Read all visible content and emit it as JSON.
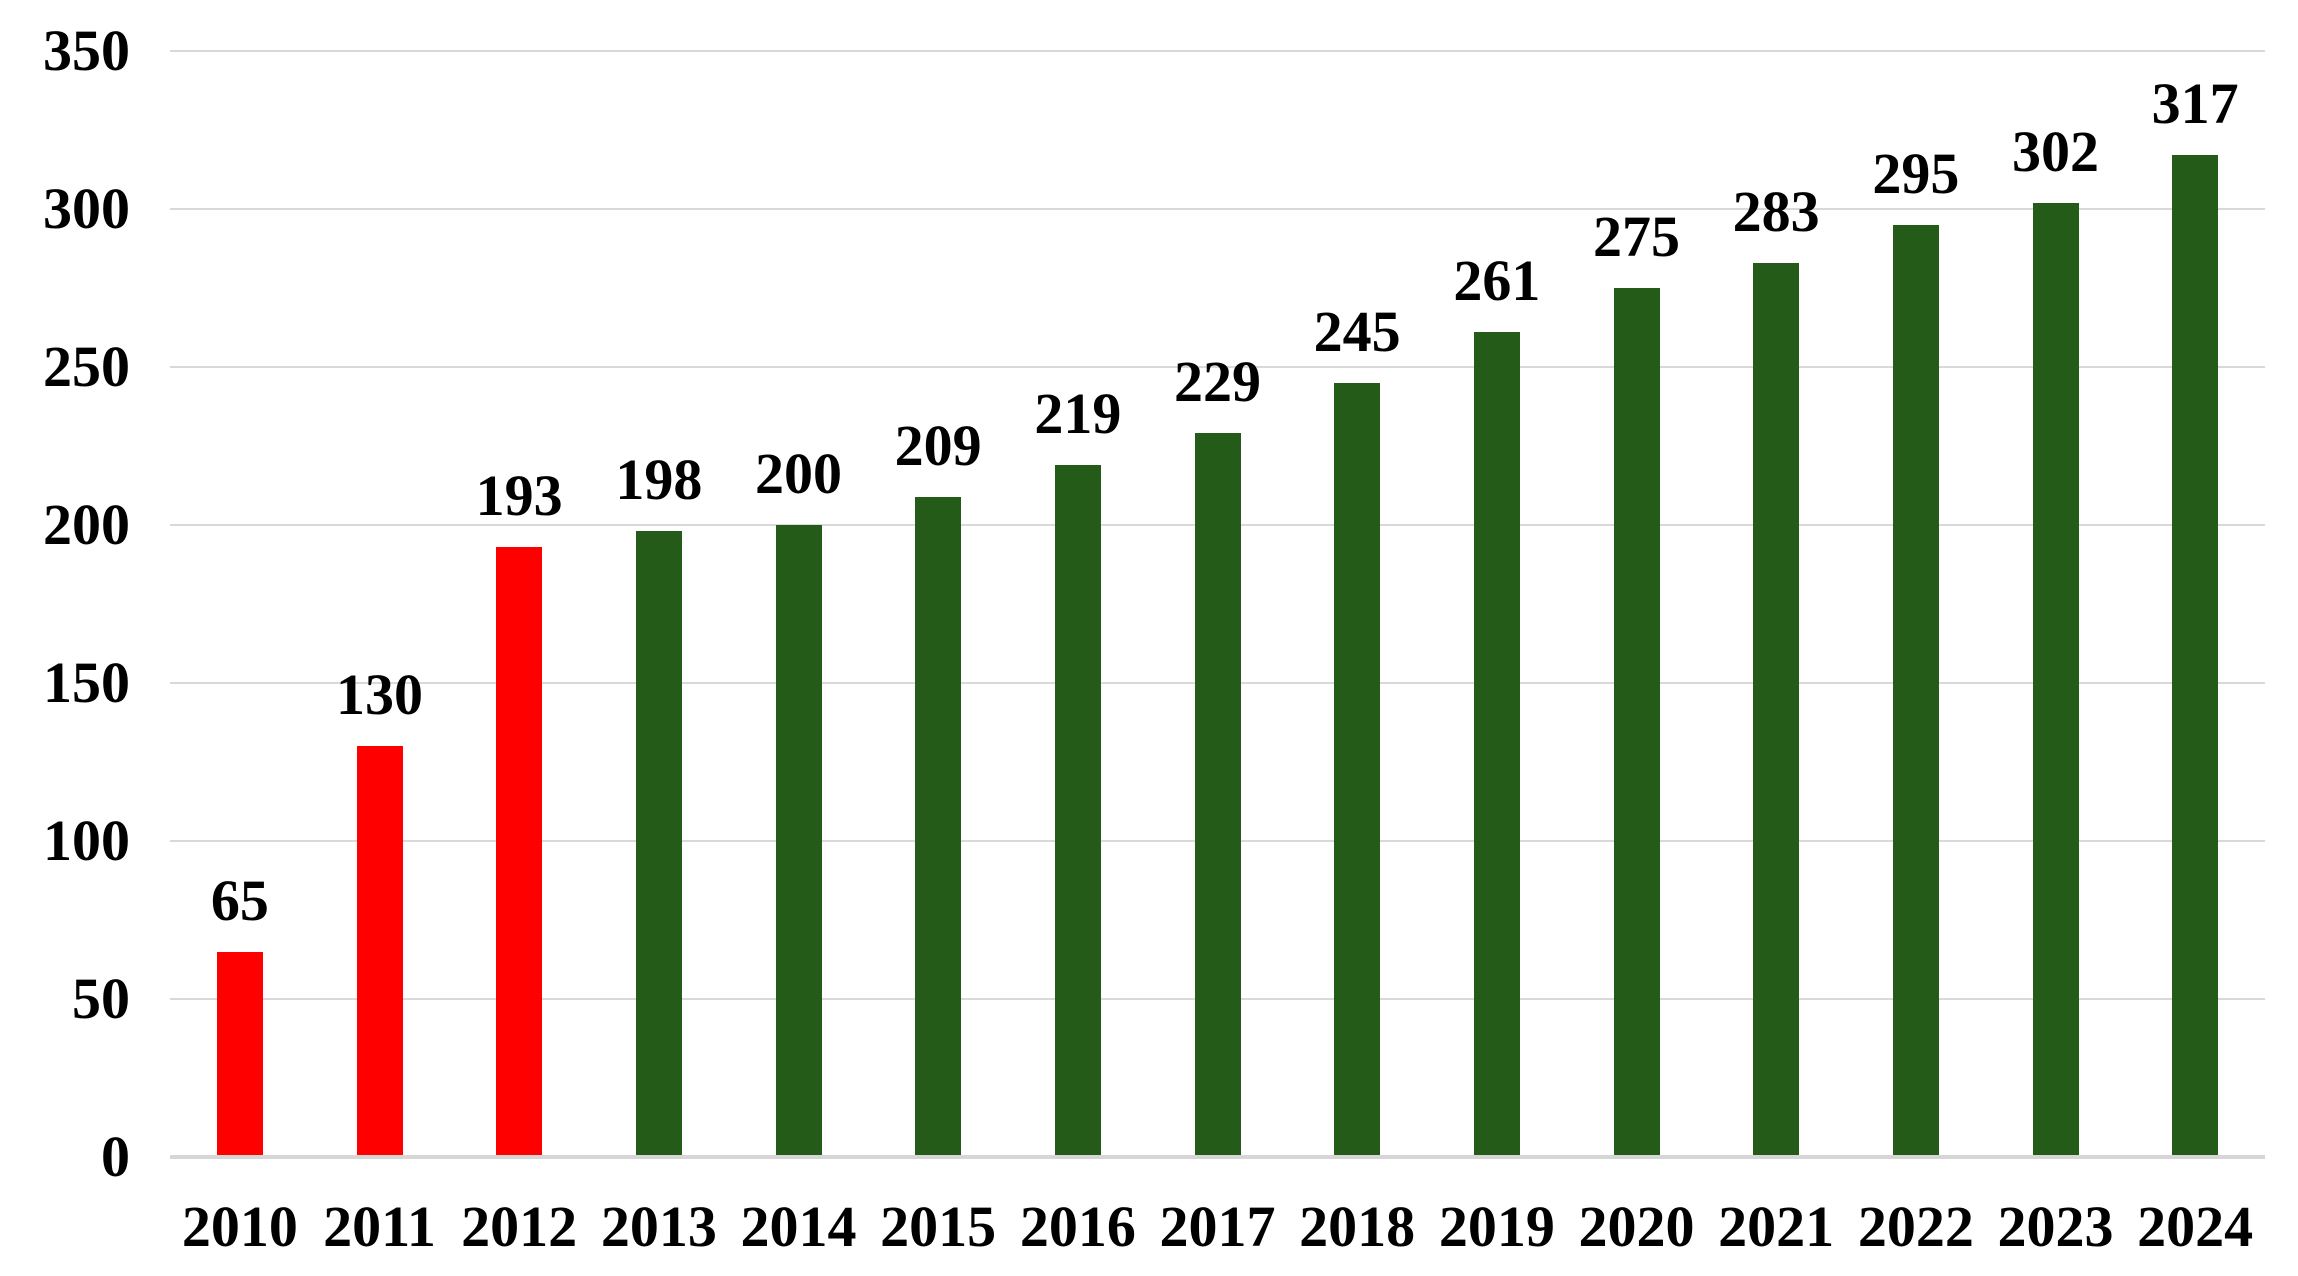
{
  "chart_data": {
    "type": "bar",
    "title": "",
    "xlabel": "",
    "ylabel": "",
    "categories": [
      "2010",
      "2011",
      "2012",
      "2013",
      "2014",
      "2015",
      "2016",
      "2017",
      "2018",
      "2019",
      "2020",
      "2021",
      "2022",
      "2023",
      "2024"
    ],
    "values": [
      65,
      130,
      193,
      198,
      200,
      209,
      219,
      229,
      245,
      261,
      275,
      283,
      295,
      302,
      317
    ],
    "data_labels_shown": true,
    "bar_color_keys": [
      "red",
      "red",
      "red",
      "green",
      "green",
      "green",
      "green",
      "green",
      "green",
      "green",
      "green",
      "green",
      "green",
      "green",
      "green"
    ],
    "ylim": [
      0,
      350
    ],
    "yticks": [
      0,
      50,
      100,
      150,
      200,
      250,
      300,
      350
    ],
    "grid": true,
    "legend_position": "none",
    "colors": {
      "red": "#ff0000",
      "green": "#255b19",
      "gridline": "#d9d9d9",
      "text": "#000000",
      "background": "#ffffff"
    }
  }
}
